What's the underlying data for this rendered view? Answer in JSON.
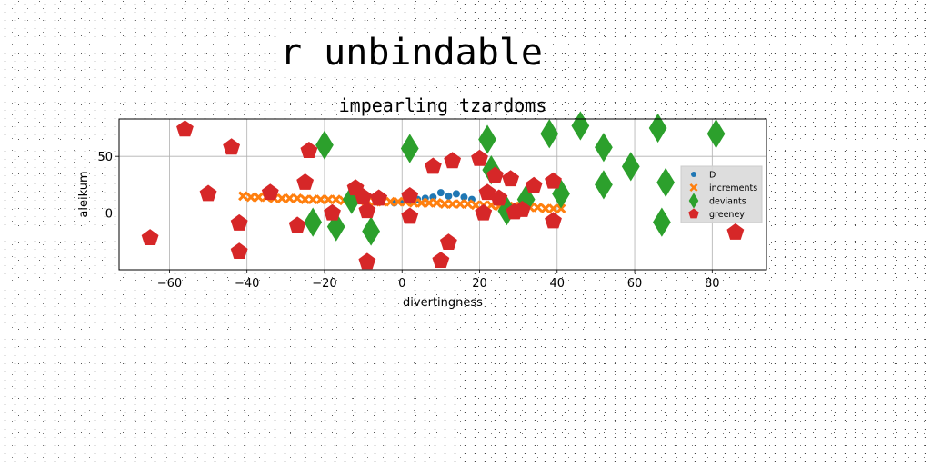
{
  "suptitle": "r unbindable",
  "chart_data": {
    "type": "scatter",
    "title": "impearling tzardoms",
    "xlabel": "divertingness",
    "ylabel": "aleikum",
    "xlim": [
      -73,
      94
    ],
    "ylim": [
      -50,
      83
    ],
    "xticks": [
      -60,
      -40,
      -20,
      0,
      20,
      40,
      60,
      80
    ],
    "yticks": [
      0,
      50
    ],
    "grid": true,
    "legend_position": "right",
    "series": [
      {
        "name": "D",
        "color": "#1f77b4",
        "marker": "circle",
        "x": [
          -2,
          0,
          2,
          4,
          6,
          8,
          10,
          12,
          14,
          16,
          18
        ],
        "y": [
          9,
          10,
          11,
          12,
          13,
          14,
          18,
          15,
          17,
          14,
          12
        ]
      },
      {
        "name": "increments",
        "color": "#ff7f0e",
        "marker": "x",
        "x": [
          -41,
          -39,
          -37,
          -35,
          -33,
          -31,
          -29,
          -27,
          -25,
          -23,
          -21,
          -19,
          -17,
          -15,
          -13,
          -11,
          -9,
          -7,
          -5,
          -3,
          -1,
          1,
          3,
          5,
          7,
          9,
          11,
          13,
          15,
          17,
          19,
          21,
          23,
          25,
          27,
          29,
          31,
          33,
          35,
          37,
          39,
          41
        ],
        "y": [
          15,
          14,
          14,
          14,
          13,
          13,
          13,
          13,
          12,
          12,
          12,
          12,
          12,
          11,
          11,
          11,
          11,
          10,
          10,
          10,
          10,
          10,
          9,
          9,
          9,
          9,
          8,
          8,
          8,
          8,
          7,
          7,
          7,
          6,
          6,
          6,
          6,
          5,
          5,
          4,
          4,
          4
        ]
      },
      {
        "name": "deviants",
        "color": "#2ca02c",
        "marker": "diamond",
        "x": [
          -23,
          -20,
          -17,
          -13,
          -8,
          2,
          22,
          23,
          27,
          32,
          38,
          41,
          46,
          52,
          52,
          59,
          66,
          67,
          68,
          81
        ],
        "y": [
          -8,
          60,
          -12,
          12,
          -16,
          57,
          65,
          38,
          2,
          12,
          70,
          17,
          77,
          58,
          25,
          41,
          75,
          -8,
          27,
          70
        ]
      },
      {
        "name": "greeney",
        "color": "#d62728",
        "marker": "pentagon",
        "x": [
          -65,
          -56,
          -50,
          -44,
          -42,
          -42,
          -34,
          -27,
          -25,
          -24,
          -18,
          -12,
          -10,
          -9,
          -9,
          -6,
          2,
          2,
          8,
          10,
          12,
          13,
          20,
          21,
          22,
          24,
          25,
          28,
          29,
          31,
          34,
          39,
          39,
          86
        ],
        "y": [
          -22,
          74,
          17,
          58,
          -9,
          -34,
          18,
          -11,
          27,
          55,
          0,
          22,
          14,
          2,
          -43,
          13,
          15,
          -3,
          41,
          -42,
          -26,
          46,
          48,
          0,
          18,
          33,
          13,
          30,
          1,
          3,
          24,
          -7,
          28,
          -17
        ]
      }
    ]
  }
}
